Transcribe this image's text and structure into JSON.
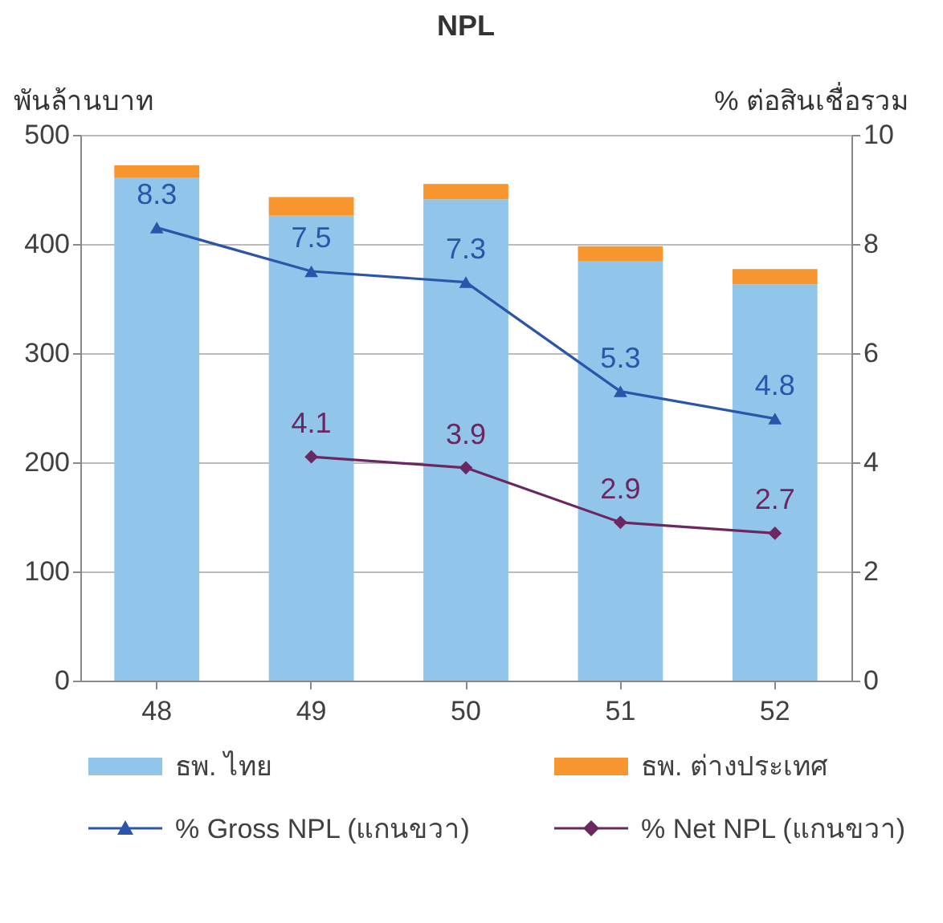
{
  "chart_data": {
    "type": "bar",
    "title": "NPL",
    "ylabel": "พันล้านบาท",
    "y2label": "% ต่อสินเชื่อรวม",
    "categories": [
      "48",
      "49",
      "50",
      "51",
      "52"
    ],
    "stacked": true,
    "grid": "y",
    "legend": "bottom",
    "ylim": [
      0,
      500
    ],
    "yticks": [
      0,
      100,
      200,
      300,
      400,
      500
    ],
    "y2lim": [
      0,
      10
    ],
    "y2ticks": [
      0,
      2,
      4,
      6,
      8,
      10
    ],
    "series": [
      {
        "name": "ธพ. ไทย",
        "type": "bar",
        "color": "#92c5ea",
        "values": [
          461,
          426,
          441,
          384,
          363
        ]
      },
      {
        "name": "ธพ. ต่างประเทศ",
        "type": "bar",
        "color": "#f7952f",
        "values": [
          11,
          17,
          14,
          14,
          14
        ]
      },
      {
        "name": "% Gross NPL (แกนขวา)",
        "type": "line",
        "axis": "y2",
        "marker": "triangle",
        "color": "#2a55a8",
        "values": [
          8.3,
          7.5,
          7.3,
          5.3,
          4.8
        ],
        "value_labels": [
          "8.3",
          "7.5",
          "7.3",
          "5.3",
          "4.8"
        ]
      },
      {
        "name": "% Net NPL (แกนขวา)",
        "type": "line",
        "axis": "y2",
        "marker": "diamond",
        "color": "#6b2860",
        "values": [
          null,
          4.1,
          3.9,
          2.9,
          2.7
        ],
        "value_labels": [
          null,
          "4.1",
          "3.9",
          "2.9",
          "2.7"
        ]
      }
    ]
  }
}
